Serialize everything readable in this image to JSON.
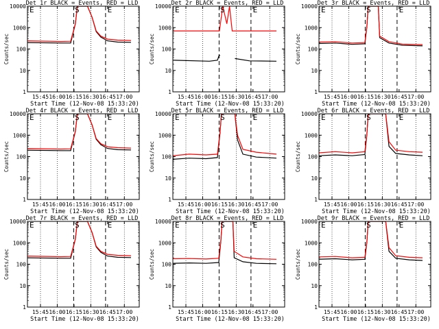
{
  "chart_data": {
    "type": "line",
    "y_scale": "log",
    "ylim": [
      1,
      10000
    ],
    "ylabel": "Counts/sec",
    "xlabel": "Start Time (12-Nov-08 15:33:20)",
    "x_tick_labels": [
      "15:45",
      "16:00",
      "16:15",
      "16:30",
      "16:45",
      "17:00"
    ],
    "y_tick_labels": [
      "1",
      "10",
      "100",
      "1000",
      "10000"
    ],
    "markers": [
      "S",
      "E"
    ],
    "colors": {
      "events": "#000000",
      "lld": "#ff0000"
    },
    "panels": [
      {
        "title": "Det 1r BLACK = Events, RED = LLD",
        "lld": [
          [
            15.55,
            240
          ],
          [
            16.05,
            225
          ],
          [
            16.2,
            230
          ],
          [
            16.27,
            1500
          ],
          [
            16.3,
            10000
          ],
          [
            16.45,
            10000
          ],
          [
            16.52,
            3000
          ],
          [
            16.58,
            700
          ],
          [
            16.65,
            400
          ],
          [
            16.75,
            290
          ],
          [
            16.9,
            260
          ],
          [
            17.1,
            250
          ]
        ],
        "events": [
          [
            15.55,
            200
          ],
          [
            16.05,
            190
          ],
          [
            16.2,
            190
          ],
          [
            16.27,
            1500
          ],
          [
            16.3,
            10000
          ],
          [
            16.45,
            10000
          ],
          [
            16.52,
            3000
          ],
          [
            16.58,
            650
          ],
          [
            16.65,
            360
          ],
          [
            16.75,
            240
          ],
          [
            16.9,
            210
          ],
          [
            17.1,
            205
          ]
        ]
      },
      {
        "title": "Det 2r BLACK = Events, RED = LLD",
        "lld": [
          [
            15.55,
            700
          ],
          [
            16.25,
            700
          ],
          [
            16.3,
            10000
          ],
          [
            16.36,
            1500
          ],
          [
            16.4,
            10000
          ],
          [
            16.44,
            700
          ],
          [
            17.1,
            700
          ]
        ],
        "events": [
          [
            15.55,
            30
          ],
          [
            16.1,
            27
          ],
          [
            16.22,
            30
          ],
          [
            16.245,
            50
          ],
          [
            16.26,
            50
          ],
          [
            16.33,
            null
          ],
          [
            16.47,
            null
          ],
          [
            16.48,
            36
          ],
          [
            16.7,
            28
          ],
          [
            17.1,
            27
          ]
        ]
      },
      {
        "title": "Det 3r BLACK = Events, RED = LLD",
        "lld": [
          [
            15.55,
            210
          ],
          [
            15.8,
            220
          ],
          [
            16.05,
            190
          ],
          [
            16.24,
            200
          ],
          [
            16.27,
            1200
          ],
          [
            16.29,
            10000
          ],
          [
            16.44,
            10000
          ],
          [
            16.46,
            400
          ],
          [
            16.6,
            220
          ],
          [
            16.8,
            170
          ],
          [
            17.1,
            160
          ]
        ],
        "events": [
          [
            15.55,
            180
          ],
          [
            15.8,
            190
          ],
          [
            16.05,
            165
          ],
          [
            16.24,
            175
          ],
          [
            16.27,
            1100
          ],
          [
            16.29,
            10000
          ],
          [
            16.44,
            10000
          ],
          [
            16.46,
            340
          ],
          [
            16.6,
            190
          ],
          [
            16.8,
            150
          ],
          [
            17.1,
            140
          ]
        ]
      },
      {
        "title": "Det 4r BLACK = Events, RED = LLD",
        "lld": [
          [
            15.55,
            240
          ],
          [
            16.05,
            225
          ],
          [
            16.2,
            230
          ],
          [
            16.27,
            1500
          ],
          [
            16.3,
            10000
          ],
          [
            16.45,
            10000
          ],
          [
            16.52,
            3000
          ],
          [
            16.58,
            700
          ],
          [
            16.65,
            400
          ],
          [
            16.75,
            290
          ],
          [
            16.9,
            260
          ],
          [
            17.1,
            250
          ]
        ],
        "events": [
          [
            15.55,
            200
          ],
          [
            16.05,
            190
          ],
          [
            16.2,
            190
          ],
          [
            16.27,
            1500
          ],
          [
            16.3,
            10000
          ],
          [
            16.45,
            10000
          ],
          [
            16.52,
            3000
          ],
          [
            16.58,
            650
          ],
          [
            16.65,
            360
          ],
          [
            16.75,
            240
          ],
          [
            16.9,
            210
          ],
          [
            17.1,
            205
          ]
        ]
      },
      {
        "title": "Det 5r BLACK = Events, RED = LLD",
        "lld": [
          [
            15.55,
            110
          ],
          [
            15.8,
            130
          ],
          [
            16.05,
            120
          ],
          [
            16.22,
            130
          ],
          [
            16.26,
            1500
          ],
          [
            16.28,
            10000
          ],
          [
            16.48,
            10000
          ],
          [
            16.52,
            1000
          ],
          [
            16.6,
            220
          ],
          [
            16.8,
            160
          ],
          [
            17.1,
            130
          ]
        ],
        "events": [
          [
            15.55,
            75
          ],
          [
            15.8,
            85
          ],
          [
            16.05,
            80
          ],
          [
            16.22,
            90
          ],
          [
            16.26,
            1400
          ],
          [
            16.28,
            10000
          ],
          [
            16.48,
            10000
          ],
          [
            16.52,
            600
          ],
          [
            16.6,
            130
          ],
          [
            16.8,
            95
          ],
          [
            17.1,
            85
          ]
        ]
      },
      {
        "title": "Det 6r BLACK = Events, RED = LLD",
        "lld": [
          [
            15.55,
            150
          ],
          [
            15.8,
            170
          ],
          [
            16.05,
            150
          ],
          [
            16.24,
            170
          ],
          [
            16.27,
            1200
          ],
          [
            16.29,
            10000
          ],
          [
            16.55,
            10000
          ],
          [
            16.6,
            500
          ],
          [
            16.7,
            200
          ],
          [
            16.9,
            170
          ],
          [
            17.1,
            160
          ]
        ],
        "events": [
          [
            15.55,
            110
          ],
          [
            15.8,
            120
          ],
          [
            16.05,
            110
          ],
          [
            16.24,
            125
          ],
          [
            16.27,
            1100
          ],
          [
            16.29,
            10000
          ],
          [
            16.55,
            10000
          ],
          [
            16.6,
            300
          ],
          [
            16.7,
            140
          ],
          [
            16.9,
            120
          ],
          [
            17.1,
            110
          ]
        ]
      },
      {
        "title": "Det 7r BLACK = Events, RED = LLD",
        "lld": [
          [
            15.55,
            240
          ],
          [
            16.05,
            225
          ],
          [
            16.2,
            230
          ],
          [
            16.27,
            1500
          ],
          [
            16.3,
            10000
          ],
          [
            16.45,
            10000
          ],
          [
            16.52,
            3000
          ],
          [
            16.58,
            700
          ],
          [
            16.65,
            400
          ],
          [
            16.75,
            290
          ],
          [
            16.9,
            260
          ],
          [
            17.1,
            250
          ]
        ],
        "events": [
          [
            15.55,
            200
          ],
          [
            16.05,
            190
          ],
          [
            16.2,
            190
          ],
          [
            16.27,
            1500
          ],
          [
            16.3,
            10000
          ],
          [
            16.45,
            10000
          ],
          [
            16.52,
            3000
          ],
          [
            16.58,
            650
          ],
          [
            16.65,
            360
          ],
          [
            16.75,
            240
          ],
          [
            16.9,
            210
          ],
          [
            17.1,
            205
          ]
        ]
      },
      {
        "title": "Det 8r BLACK = Events, RED = LLD",
        "lld": [
          [
            15.55,
            180
          ],
          [
            15.8,
            185
          ],
          [
            16.05,
            175
          ],
          [
            16.24,
            190
          ],
          [
            16.27,
            1200
          ],
          [
            16.29,
            10000
          ],
          [
            16.45,
            10000
          ],
          [
            16.47,
            400
          ],
          [
            16.6,
            220
          ],
          [
            16.8,
            180
          ],
          [
            17.1,
            170
          ]
        ],
        "events": [
          [
            15.55,
            110
          ],
          [
            15.8,
            115
          ],
          [
            16.05,
            110
          ],
          [
            16.24,
            120
          ],
          [
            16.27,
            1100
          ],
          [
            16.29,
            10000
          ],
          [
            16.45,
            10000
          ],
          [
            16.47,
            200
          ],
          [
            16.6,
            130
          ],
          [
            16.8,
            110
          ],
          [
            17.1,
            105
          ]
        ]
      },
      {
        "title": "Det 9r BLACK = Events, RED = LLD",
        "lld": [
          [
            15.55,
            220
          ],
          [
            15.8,
            230
          ],
          [
            16.05,
            200
          ],
          [
            16.24,
            210
          ],
          [
            16.27,
            1200
          ],
          [
            16.29,
            10000
          ],
          [
            16.55,
            10000
          ],
          [
            16.6,
            600
          ],
          [
            16.7,
            250
          ],
          [
            16.9,
            210
          ],
          [
            17.1,
            200
          ]
        ],
        "events": [
          [
            15.55,
            170
          ],
          [
            15.8,
            180
          ],
          [
            16.05,
            160
          ],
          [
            16.24,
            170
          ],
          [
            16.27,
            1100
          ],
          [
            16.29,
            10000
          ],
          [
            16.55,
            10000
          ],
          [
            16.6,
            400
          ],
          [
            16.7,
            190
          ],
          [
            16.9,
            160
          ],
          [
            17.1,
            150
          ]
        ]
      }
    ]
  }
}
